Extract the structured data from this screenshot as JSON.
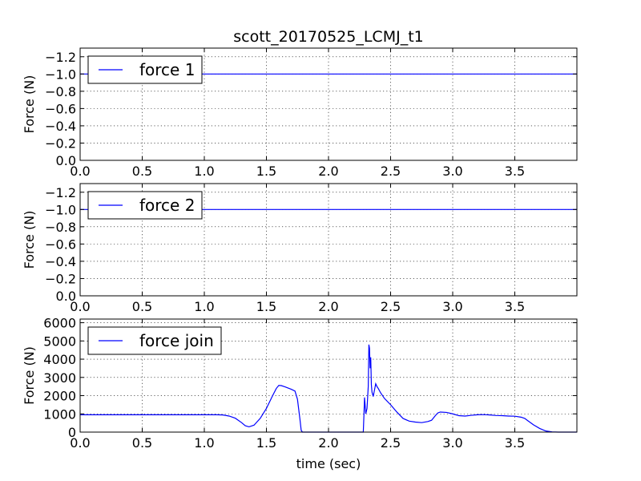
{
  "figure": {
    "title": "scott_20170525_LCMJ_t1",
    "background": "#ffffff",
    "series_color": "#0000ff"
  },
  "chart_data": [
    {
      "type": "line",
      "title": "scott_20170525_LCMJ_t1",
      "xlabel": "",
      "ylabel": "Force (N)",
      "xlim": [
        0,
        4
      ],
      "ylim": [
        0,
        -1.3
      ],
      "y_inverted": true,
      "grid": true,
      "legend_position": "top-left",
      "xticks": [
        0,
        0.5,
        1,
        1.5,
        2,
        2.5,
        3,
        3.5
      ],
      "xtick_labels": [
        "0.0",
        "0.5",
        "1.0",
        "1.5",
        "2.0",
        "2.5",
        "3.0",
        "3.5"
      ],
      "yticks": [
        -1.2,
        -1.0,
        -0.8,
        -0.6,
        -0.4,
        -0.2,
        0
      ],
      "ytick_labels": [
        "−1.2",
        "−1.0",
        "−0.8",
        "−0.6",
        "−0.4",
        "−0.2",
        "0.0"
      ],
      "series": [
        {
          "name": "force 1",
          "color": "#0000ff",
          "x": [
            0,
            4
          ],
          "y": [
            -1,
            -1
          ]
        }
      ]
    },
    {
      "type": "line",
      "title": "",
      "xlabel": "",
      "ylabel": "Force (N)",
      "xlim": [
        0,
        4
      ],
      "ylim": [
        0,
        -1.3
      ],
      "y_inverted": true,
      "grid": true,
      "legend_position": "top-left",
      "xticks": [
        0,
        0.5,
        1,
        1.5,
        2,
        2.5,
        3,
        3.5
      ],
      "xtick_labels": [
        "0.0",
        "0.5",
        "1.0",
        "1.5",
        "2.0",
        "2.5",
        "3.0",
        "3.5"
      ],
      "yticks": [
        -1.2,
        -1.0,
        -0.8,
        -0.6,
        -0.4,
        -0.2,
        0
      ],
      "ytick_labels": [
        "−1.2",
        "−1.0",
        "−0.8",
        "−0.6",
        "−0.4",
        "−0.2",
        "0.0"
      ],
      "series": [
        {
          "name": "force 2",
          "color": "#0000ff",
          "x": [
            0,
            4
          ],
          "y": [
            -1,
            -1
          ]
        }
      ]
    },
    {
      "type": "line",
      "title": "",
      "xlabel": "time (sec)",
      "ylabel": "Force (N)",
      "xlim": [
        0,
        4
      ],
      "ylim": [
        0,
        6200
      ],
      "y_inverted": false,
      "grid": true,
      "legend_position": "top-left",
      "xticks": [
        0,
        0.5,
        1,
        1.5,
        2,
        2.5,
        3,
        3.5
      ],
      "xtick_labels": [
        "0.0",
        "0.5",
        "1.0",
        "1.5",
        "2.0",
        "2.5",
        "3.0",
        "3.5"
      ],
      "yticks": [
        0,
        1000,
        2000,
        3000,
        4000,
        5000,
        6000
      ],
      "ytick_labels": [
        "0",
        "1000",
        "2000",
        "3000",
        "4000",
        "5000",
        "6000"
      ],
      "series": [
        {
          "name": "force join",
          "color": "#0000ff",
          "x": [
            0,
            1.1,
            1.15,
            1.2,
            1.25,
            1.3,
            1.33,
            1.36,
            1.4,
            1.45,
            1.5,
            1.55,
            1.58,
            1.6,
            1.62,
            1.65,
            1.7,
            1.73,
            1.75,
            1.77,
            1.78,
            1.79,
            1.8,
            2.28,
            2.285,
            2.29,
            2.3,
            2.31,
            2.32,
            2.325,
            2.33,
            2.335,
            2.34,
            2.345,
            2.35,
            2.36,
            2.37,
            2.38,
            2.39,
            2.4,
            2.42,
            2.45,
            2.5,
            2.55,
            2.6,
            2.65,
            2.7,
            2.75,
            2.8,
            2.83,
            2.86,
            2.88,
            2.9,
            2.95,
            3.0,
            3.05,
            3.1,
            3.15,
            3.2,
            3.25,
            3.3,
            3.35,
            3.4,
            3.45,
            3.5,
            3.55,
            3.58,
            3.6,
            3.65,
            3.7,
            3.75,
            3.8,
            3.85,
            3.9,
            4.0
          ],
          "y": [
            950,
            950,
            940,
            880,
            760,
            520,
            350,
            290,
            380,
            750,
            1300,
            2000,
            2400,
            2560,
            2550,
            2480,
            2350,
            2250,
            1800,
            700,
            100,
            0,
            0,
            0,
            900,
            1900,
            1000,
            1300,
            2500,
            4800,
            4600,
            3500,
            4100,
            2600,
            2200,
            1950,
            2300,
            2650,
            2500,
            2400,
            2150,
            1850,
            1500,
            1100,
            750,
            600,
            550,
            520,
            580,
            650,
            900,
            1050,
            1100,
            1080,
            1000,
            900,
            880,
            920,
            950,
            960,
            940,
            910,
            900,
            880,
            870,
            820,
            750,
            650,
            400,
            200,
            60,
            10,
            0,
            0,
            0
          ]
        }
      ]
    }
  ]
}
